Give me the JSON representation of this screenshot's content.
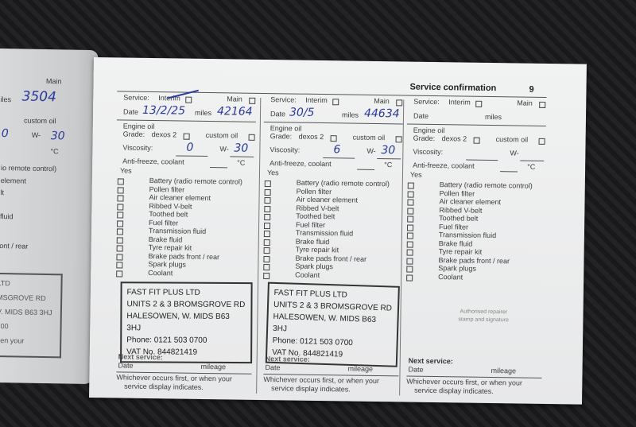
{
  "header": {
    "title": "Service confirmation",
    "page_number": "9"
  },
  "labels": {
    "service": "Service:",
    "interim": "Interim",
    "main": "Main",
    "date": "Date",
    "miles": "miles",
    "engine_oil": "Engine oil",
    "grade": "Grade:",
    "dexos": "dexos 2",
    "custom_oil": "custom oil",
    "viscosity": "Viscosity:",
    "w": "W-",
    "antifreeze": "Anti-freeze, coolant",
    "celsius": "°C",
    "yes": "Yes",
    "next_service": "Next service:",
    "next_date": "Date",
    "mileage": "mileage",
    "whichever": "Whichever occurs first, or when your",
    "display": "service display indicates.",
    "authorised": "Authorised repairer",
    "stamp_sig": "stamp and signature"
  },
  "checklist": [
    "Battery (radio remote control)",
    "Pollen filter",
    "Air cleaner element",
    "Ribbed V-belt",
    "Toothed belt",
    "Fuel filter",
    "Transmission fluid",
    "Brake fluid",
    "Tyre repair kit",
    "Brake pads front / rear",
    "Spark plugs",
    "Coolant"
  ],
  "columns": [
    {
      "date": "13/2/25",
      "miles": "42164",
      "visc_low": "0",
      "visc_high": "30",
      "stamp": {
        "name": "FAST FIT PLUS LTD",
        "address": "UNITS 2 & 3 BROMSGROVE RD",
        "town": "HALESOWEN, W. MIDS B63 3HJ",
        "phone": "Phone: 0121 503 0700",
        "vat": "VAT No. 844821419"
      }
    },
    {
      "date": "30/5",
      "miles": "44634",
      "visc_low": "6",
      "visc_high": "30",
      "stamp": {
        "name": "FAST FIT PLUS LTD",
        "address": "UNITS 2 & 3 BROMSGROVE RD",
        "town": "HALESOWEN, W. MIDS B63 3HJ",
        "phone": "Phone: 0121 503 0700",
        "vat": "VAT No. 844821419"
      }
    },
    {
      "date": "",
      "miles": "",
      "visc_low": "",
      "visc_high": "",
      "stamp": null
    }
  ],
  "left_page": {
    "main": "Main",
    "miles": "iles",
    "miles_value": "3504",
    "custom_oil": "custom oil",
    "visc_low": "0",
    "w": "W-",
    "visc_high": "30",
    "celsius": "°C",
    "fragments": [
      "io remote control)",
      "element",
      "lt",
      "fluid",
      "ont / rear"
    ],
    "stamp_fragments": [
      "LTD",
      "MSGROVE RD",
      "V. MIDS B63 3HJ",
      "700",
      "hen your"
    ]
  }
}
